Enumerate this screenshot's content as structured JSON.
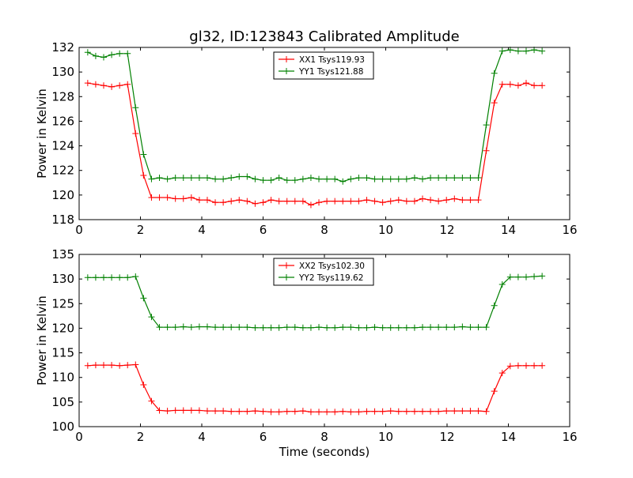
{
  "figure": {
    "title": "gl32, ID:123843 Calibrated Amplitude"
  },
  "chart_data": [
    {
      "type": "line",
      "title": "gl32, ID:123843 Calibrated Amplitude",
      "xlabel": "",
      "ylabel": "Power in Kelvin",
      "xlim": [
        0,
        16
      ],
      "ylim": [
        118,
        132
      ],
      "xticks": [
        "0",
        "2",
        "4",
        "6",
        "8",
        "10",
        "12",
        "14",
        "16"
      ],
      "yticks": [
        "118",
        "120",
        "122",
        "124",
        "126",
        "128",
        "130",
        "132"
      ],
      "xtick_values": [
        0,
        2,
        4,
        6,
        8,
        10,
        12,
        14,
        16
      ],
      "ytick_values": [
        118,
        120,
        122,
        124,
        126,
        128,
        130,
        132
      ],
      "grid": false,
      "legend_position": "top-center",
      "x": [
        0.28,
        0.54,
        0.8,
        1.06,
        1.32,
        1.58,
        1.84,
        2.1,
        2.36,
        2.62,
        2.88,
        3.14,
        3.4,
        3.66,
        3.92,
        4.18,
        4.44,
        4.7,
        4.96,
        5.22,
        5.48,
        5.74,
        6.0,
        6.26,
        6.52,
        6.78,
        7.04,
        7.3,
        7.56,
        7.82,
        8.08,
        8.34,
        8.6,
        8.86,
        9.12,
        9.38,
        9.64,
        9.9,
        10.16,
        10.42,
        10.68,
        10.94,
        11.2,
        11.46,
        11.72,
        11.98,
        12.24,
        12.5,
        12.76,
        13.02,
        13.28,
        13.54,
        13.8,
        14.06,
        14.32,
        14.58,
        14.84,
        15.1
      ],
      "series": [
        {
          "name": "XX1 Tsys119.93",
          "color": "#ff0000",
          "values": [
            129.1,
            129.0,
            128.9,
            128.8,
            128.9,
            129.0,
            125.0,
            121.6,
            119.8,
            119.8,
            119.8,
            119.7,
            119.7,
            119.8,
            119.6,
            119.6,
            119.4,
            119.4,
            119.5,
            119.6,
            119.5,
            119.3,
            119.4,
            119.6,
            119.5,
            119.5,
            119.5,
            119.5,
            119.2,
            119.4,
            119.5,
            119.5,
            119.5,
            119.5,
            119.5,
            119.6,
            119.5,
            119.4,
            119.5,
            119.6,
            119.5,
            119.5,
            119.7,
            119.6,
            119.5,
            119.6,
            119.7,
            119.6,
            119.6,
            119.6,
            123.6,
            127.5,
            129.0,
            129.0,
            128.9,
            129.1,
            128.9,
            128.9
          ]
        },
        {
          "name": "YY1 Tsys121.88",
          "color": "#008000",
          "values": [
            131.6,
            131.3,
            131.2,
            131.4,
            131.5,
            131.5,
            127.1,
            123.3,
            121.3,
            121.4,
            121.3,
            121.4,
            121.4,
            121.4,
            121.4,
            121.4,
            121.3,
            121.3,
            121.4,
            121.5,
            121.5,
            121.3,
            121.2,
            121.2,
            121.4,
            121.2,
            121.2,
            121.3,
            121.4,
            121.3,
            121.3,
            121.3,
            121.1,
            121.3,
            121.4,
            121.4,
            121.3,
            121.3,
            121.3,
            121.3,
            121.3,
            121.4,
            121.3,
            121.4,
            121.4,
            121.4,
            121.4,
            121.4,
            121.4,
            121.4,
            125.7,
            129.9,
            131.7,
            131.8,
            131.7,
            131.7,
            131.8,
            131.7
          ]
        }
      ]
    },
    {
      "type": "line",
      "title": "",
      "xlabel": "Time (seconds)",
      "ylabel": "Power in Kelvin",
      "xlim": [
        0,
        16
      ],
      "ylim": [
        100,
        135
      ],
      "xticks": [
        "0",
        "2",
        "4",
        "6",
        "8",
        "10",
        "12",
        "14",
        "16"
      ],
      "yticks": [
        "100",
        "105",
        "110",
        "115",
        "120",
        "125",
        "130",
        "135"
      ],
      "xtick_values": [
        0,
        2,
        4,
        6,
        8,
        10,
        12,
        14,
        16
      ],
      "ytick_values": [
        100,
        105,
        110,
        115,
        120,
        125,
        130,
        135
      ],
      "grid": false,
      "legend_position": "top-center",
      "x": [
        0.28,
        0.54,
        0.8,
        1.06,
        1.32,
        1.58,
        1.84,
        2.1,
        2.36,
        2.62,
        2.88,
        3.14,
        3.4,
        3.66,
        3.92,
        4.18,
        4.44,
        4.7,
        4.96,
        5.22,
        5.48,
        5.74,
        6.0,
        6.26,
        6.52,
        6.78,
        7.04,
        7.3,
        7.56,
        7.82,
        8.08,
        8.34,
        8.6,
        8.86,
        9.12,
        9.38,
        9.64,
        9.9,
        10.16,
        10.42,
        10.68,
        10.94,
        11.2,
        11.46,
        11.72,
        11.98,
        12.24,
        12.5,
        12.76,
        13.02,
        13.28,
        13.54,
        13.8,
        14.06,
        14.32,
        14.58,
        14.84,
        15.1
      ],
      "series": [
        {
          "name": "XX2 Tsys102.30",
          "color": "#ff0000",
          "values": [
            112.4,
            112.5,
            112.5,
            112.5,
            112.4,
            112.5,
            112.6,
            108.5,
            105.2,
            103.3,
            103.2,
            103.3,
            103.3,
            103.3,
            103.3,
            103.2,
            103.2,
            103.2,
            103.1,
            103.1,
            103.1,
            103.2,
            103.1,
            103.0,
            103.0,
            103.1,
            103.1,
            103.2,
            103.0,
            103.0,
            103.0,
            103.0,
            103.1,
            103.0,
            103.0,
            103.1,
            103.1,
            103.1,
            103.2,
            103.1,
            103.1,
            103.1,
            103.1,
            103.1,
            103.1,
            103.2,
            103.2,
            103.2,
            103.2,
            103.2,
            103.1,
            107.2,
            110.9,
            112.3,
            112.4,
            112.4,
            112.4,
            112.4
          ]
        },
        {
          "name": "YY2 Tsys119.62",
          "color": "#008000",
          "values": [
            130.3,
            130.3,
            130.3,
            130.3,
            130.3,
            130.3,
            130.5,
            126.1,
            122.3,
            120.2,
            120.2,
            120.2,
            120.3,
            120.2,
            120.3,
            120.3,
            120.2,
            120.2,
            120.2,
            120.2,
            120.2,
            120.1,
            120.1,
            120.1,
            120.1,
            120.2,
            120.2,
            120.1,
            120.1,
            120.2,
            120.1,
            120.1,
            120.2,
            120.2,
            120.1,
            120.1,
            120.2,
            120.1,
            120.1,
            120.1,
            120.1,
            120.1,
            120.2,
            120.2,
            120.2,
            120.2,
            120.2,
            120.3,
            120.2,
            120.2,
            120.2,
            124.6,
            128.9,
            130.4,
            130.4,
            130.4,
            130.5,
            130.6
          ]
        }
      ]
    }
  ]
}
